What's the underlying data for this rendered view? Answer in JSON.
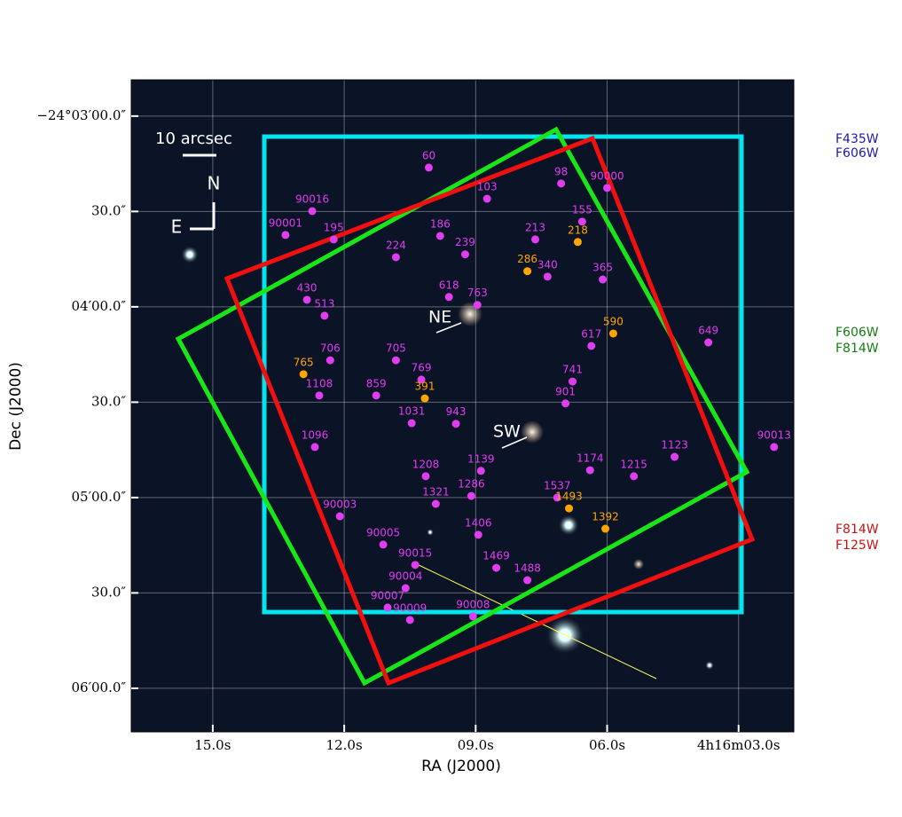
{
  "chart_data": {
    "type": "scatter",
    "xlabel": "RA (J2000)",
    "ylabel": "Dec (J2000)",
    "xlim": [
      16.86,
      1.74
    ],
    "ylim": [
      168.6,
      373.7
    ],
    "xticks": [
      {
        "value": 15,
        "label": "15.0s"
      },
      {
        "value": 12,
        "label": "12.0s"
      },
      {
        "value": 9,
        "label": "09.0s"
      },
      {
        "value": 6,
        "label": "06.0s"
      },
      {
        "value": 3,
        "label": "4h16m03.0s"
      }
    ],
    "yticks": [
      {
        "value": 180,
        "label": "−24°03′00.0″"
      },
      {
        "value": 210,
        "label": "30.0″"
      },
      {
        "value": 240,
        "label": "04′00.0″"
      },
      {
        "value": 270,
        "label": "30.0″"
      },
      {
        "value": 300,
        "label": "05′00.0″"
      },
      {
        "value": 330,
        "label": "30.0″"
      },
      {
        "value": 360,
        "label": "06′00.0″"
      }
    ],
    "grid": true,
    "series": [
      {
        "color": "#e03cf0",
        "x": [
          10.07,
          12.73,
          13.34,
          12.24,
          9.81,
          8.74,
          7.05,
          6.0,
          6.57,
          7.64,
          9.24,
          10.82,
          7.36,
          6.1,
          12.85,
          12.45,
          9.61,
          8.96,
          6.36,
          3.69,
          12.32,
          12.57,
          10.82,
          10.24,
          11.27,
          9.45,
          10.46,
          6.79,
          6.95,
          12.67,
          8.88,
          6.39,
          5.39,
          10.14,
          9.1,
          9.91,
          7.14,
          8.94,
          12.1,
          11.11,
          8.53,
          7.82,
          10.38,
          10.6,
          11.01,
          10.5,
          9.06,
          2.19,
          4.46
        ],
        "y": [
          196.2,
          209.9,
          217.4,
          218.8,
          217.7,
          206.0,
          201.2,
          202.6,
          213.2,
          218.8,
          223.5,
          224.4,
          230.5,
          231.4,
          237.8,
          242.8,
          236.9,
          239.4,
          252.3,
          251.2,
          256.8,
          267.9,
          256.8,
          262.9,
          267.9,
          276.8,
          276.6,
          263.5,
          270.4,
          284.1,
          291.6,
          291.4,
          293.3,
          293.3,
          299.5,
          302.0,
          300.0,
          311.7,
          305.9,
          314.8,
          322.1,
          326.0,
          321.2,
          328.5,
          334.6,
          338.5,
          337.4,
          284.1,
          287.2
        ],
        "labels": [
          "60",
          "90016",
          "90001",
          "195",
          "186",
          "103",
          "98",
          "90000",
          "155",
          "213",
          "239",
          "224",
          "340",
          "365",
          "430",
          "513",
          "618",
          "763",
          "617",
          "649",
          "706",
          "1108",
          "705",
          "769",
          "859",
          "943",
          "1031",
          "741",
          "901",
          "1096",
          "1139",
          "1174",
          "1215",
          "1208",
          "1286",
          "1321",
          "1537",
          "1406",
          "90003",
          "90005",
          "1469",
          "1488",
          "90015",
          "90004",
          "90007",
          "90009",
          "90008",
          "90013",
          "1123"
        ]
      },
      {
        "color": "#ffa500",
        "x": [
          7.82,
          6.67,
          5.86,
          12.93,
          10.16,
          6.87,
          6.04
        ],
        "y": [
          228.8,
          219.6,
          248.4,
          261.2,
          268.8,
          303.4,
          309.8
        ],
        "labels": [
          "286",
          "218",
          "590",
          "765",
          "391",
          "1493",
          "1392"
        ]
      }
    ],
    "annotations": {
      "ne": "NE",
      "sw": "SW",
      "scale": "10 arcsec",
      "north": "N",
      "east": "E"
    },
    "footprints": [
      {
        "labels": [
          "F435W",
          "F606W"
        ],
        "color": "#00e5ee",
        "text_color": "#1a1ab4"
      },
      {
        "labels": [
          "F606W",
          "F814W"
        ],
        "color": "#19e619",
        "text_color": "#138013"
      },
      {
        "labels": [
          "F814W",
          "F125W"
        ],
        "color": "#f01010",
        "text_color": "#d01010"
      }
    ]
  }
}
